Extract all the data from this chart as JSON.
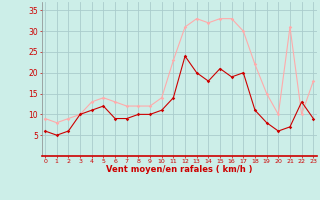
{
  "hours": [
    0,
    1,
    2,
    3,
    4,
    5,
    6,
    7,
    8,
    9,
    10,
    11,
    12,
    13,
    14,
    15,
    16,
    17,
    18,
    19,
    20,
    21,
    22,
    23
  ],
  "wind_avg": [
    6,
    5,
    6,
    10,
    11,
    12,
    9,
    9,
    10,
    10,
    11,
    14,
    24,
    20,
    18,
    21,
    19,
    20,
    11,
    8,
    6,
    7,
    13,
    9
  ],
  "wind_gust": [
    9,
    8,
    9,
    10,
    13,
    14,
    13,
    12,
    12,
    12,
    14,
    23,
    31,
    33,
    32,
    33,
    33,
    30,
    22,
    15,
    10,
    31,
    10,
    18
  ],
  "line_color_avg": "#cc0000",
  "line_color_gust": "#ffaaaa",
  "bg_color": "#cceee8",
  "grid_color": "#aacccc",
  "xlabel": "Vent moyen/en rafales ( km/h )",
  "xlabel_color": "#cc0000",
  "tick_color": "#cc0000",
  "spine_bottom_color": "#cc0000",
  "ylim": [
    0,
    37
  ],
  "yticks": [
    5,
    10,
    15,
    20,
    25,
    30,
    35
  ],
  "xlim": [
    -0.3,
    23.3
  ]
}
